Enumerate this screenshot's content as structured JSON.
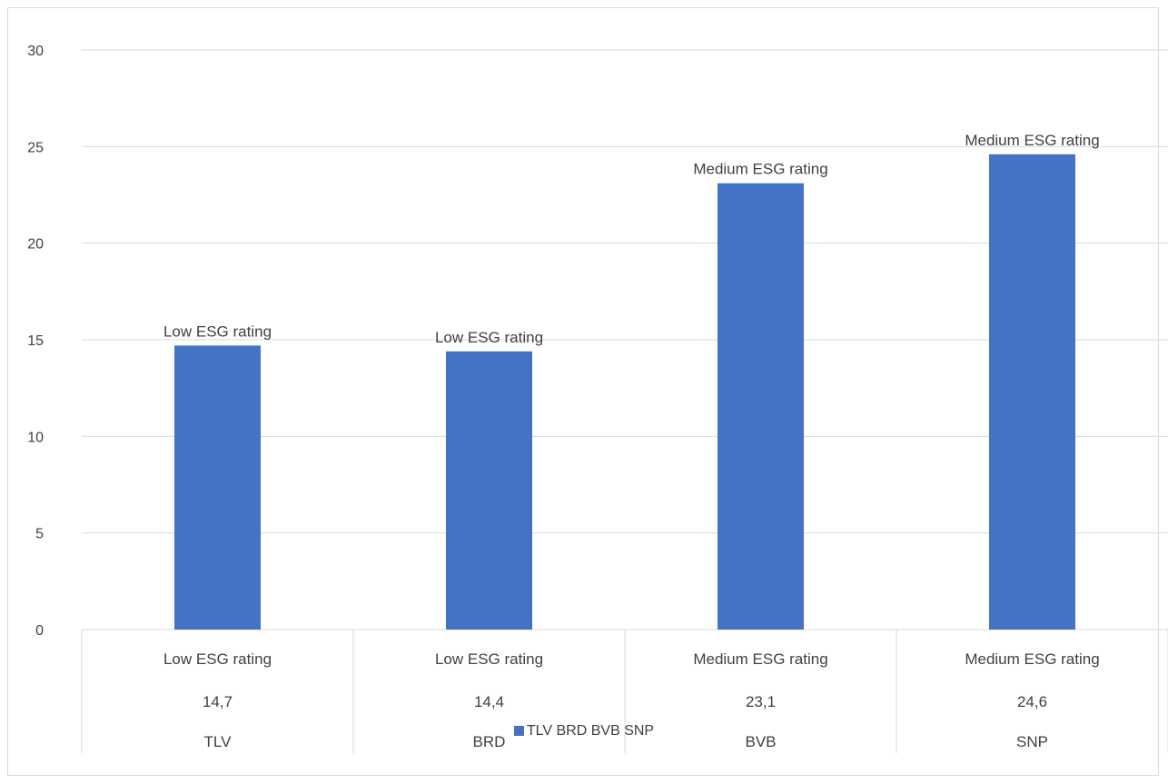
{
  "chart_data": {
    "type": "bar",
    "categories": [
      "TLV",
      "BRD",
      "BVB",
      "SNP"
    ],
    "values": [
      14.7,
      14.4,
      23.1,
      24.6
    ],
    "value_labels": [
      "14,7",
      "14,4",
      "23,1",
      "24,6"
    ],
    "rating_labels": [
      "Low ESG rating",
      "Low ESG rating",
      "Medium ESG rating",
      "Medium ESG rating"
    ],
    "ylim": [
      0,
      30
    ],
    "yticks": [
      "0",
      "5",
      "10",
      "15",
      "20",
      "25",
      "30"
    ],
    "grid": true,
    "legend": {
      "label": "TLV BRD BVB SNP",
      "placement": "bottom"
    },
    "bar_color": "#4472c4",
    "grid_color": "#d9d9d9"
  }
}
